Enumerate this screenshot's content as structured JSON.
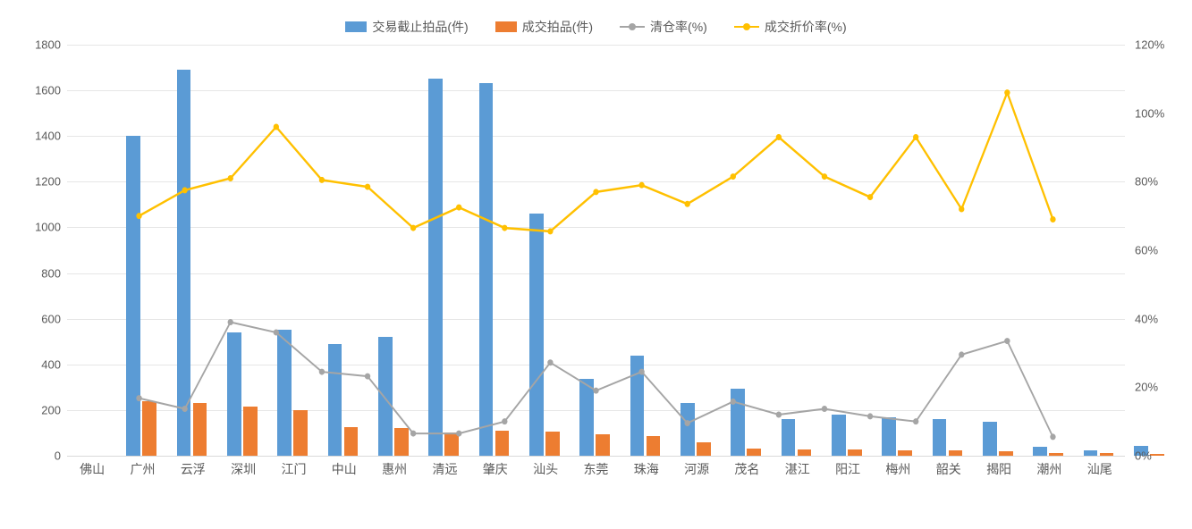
{
  "chart": {
    "type": "bar+line-dual-axis",
    "background_color": "#ffffff",
    "grid_color": "#e6e6e6",
    "axis_color": "#d9d9d9",
    "text_color": "#595959",
    "label_fontsize": 14,
    "tick_fontsize": 13,
    "legend": [
      {
        "key": "series1",
        "label": "交易截止拍品(件)",
        "type": "bar",
        "color": "#5b9bd5"
      },
      {
        "key": "series2",
        "label": "成交拍品(件)",
        "type": "bar",
        "color": "#ed7d31"
      },
      {
        "key": "series3",
        "label": "清仓率(%)",
        "type": "line",
        "color": "#a5a5a5",
        "marker": "circle"
      },
      {
        "key": "series4",
        "label": "成交折价率(%)",
        "type": "line",
        "color": "#ffc000",
        "marker": "circle"
      }
    ],
    "categories": [
      "佛山",
      "广州",
      "云浮",
      "深圳",
      "江门",
      "中山",
      "惠州",
      "清远",
      "肇庆",
      "汕头",
      "东莞",
      "珠海",
      "河源",
      "茂名",
      "湛江",
      "阳江",
      "梅州",
      "韶关",
      "揭阳",
      "潮州",
      "汕尾"
    ],
    "y_left": {
      "min": 0,
      "max": 1800,
      "step": 200,
      "ticks": [
        0,
        200,
        400,
        600,
        800,
        1000,
        1200,
        1400,
        1600,
        1800
      ]
    },
    "y_right": {
      "min": 0,
      "max": 1.2,
      "step": 0.2,
      "ticks": [
        "0%",
        "20%",
        "40%",
        "60%",
        "80%",
        "100%",
        "120%"
      ],
      "tick_values": [
        0,
        0.2,
        0.4,
        0.6,
        0.8,
        1.0,
        1.2
      ]
    },
    "series1": {
      "name": "交易截止拍品(件)",
      "color": "#5b9bd5",
      "bar_width": 0.28,
      "values": [
        1400,
        1690,
        540,
        550,
        490,
        520,
        1650,
        1630,
        1060,
        335,
        440,
        230,
        295,
        160,
        180,
        170,
        160,
        150,
        40,
        25,
        45
      ]
    },
    "series2": {
      "name": "成交拍品(件)",
      "color": "#ed7d31",
      "bar_width": 0.28,
      "values": [
        240,
        230,
        215,
        200,
        125,
        120,
        100,
        110,
        105,
        95,
        85,
        60,
        30,
        28,
        28,
        25,
        22,
        18,
        12,
        10,
        8
      ]
    },
    "series3": {
      "name": "清仓率(%)",
      "color": "#a5a5a5",
      "line_width": 2,
      "marker_size": 7,
      "values": [
        0.168,
        0.137,
        0.39,
        0.36,
        0.245,
        0.232,
        0.065,
        0.065,
        0.1,
        0.272,
        0.19,
        0.245,
        0.095,
        0.158,
        0.12,
        0.137,
        0.115,
        0.1,
        0.295,
        0.335,
        0.055
      ]
    },
    "series4": {
      "name": "成交折价率(%)",
      "color": "#ffc000",
      "line_width": 2.5,
      "marker_size": 7,
      "values": [
        0.7,
        0.775,
        0.81,
        0.96,
        0.805,
        0.785,
        0.665,
        0.725,
        0.665,
        0.655,
        0.77,
        0.79,
        0.735,
        0.815,
        0.93,
        0.815,
        0.755,
        0.93,
        0.72,
        1.06,
        0.69
      ]
    }
  }
}
